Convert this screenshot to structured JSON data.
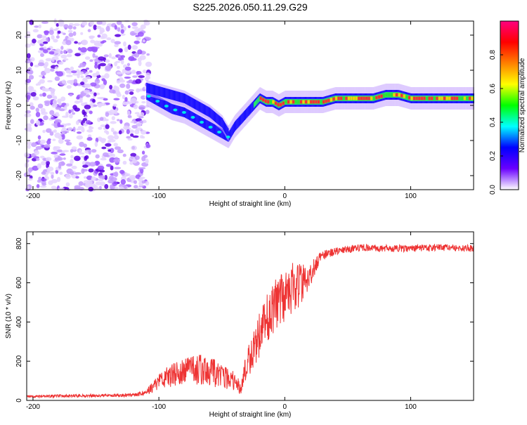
{
  "title": "S225.2026.050.11.29.G29",
  "chart_data": [
    {
      "type": "heatmap",
      "xlabel": "Height of straight line (km)",
      "ylabel": "Frequency (Hz)",
      "xlim": [
        -205,
        150
      ],
      "ylim": [
        -24,
        24
      ],
      "xticks": [
        -200,
        -100,
        0,
        100
      ],
      "yticks": [
        -20,
        -10,
        0,
        10,
        20
      ],
      "colorbar": {
        "label": "Normalized spectral amplitude",
        "range": [
          0,
          1
        ],
        "ticks": [
          "0.0",
          "0.2",
          "0.4",
          "0.6",
          "0.8"
        ],
        "tick_values": [
          0,
          0.2,
          0.4,
          0.6,
          0.8
        ],
        "colors": [
          "#ffffff",
          "#6a00ff",
          "#0000ff",
          "#00ffff",
          "#00ff00",
          "#ffff00",
          "#ff8000",
          "#ff0000",
          "#ff0080"
        ]
      },
      "ridge": {
        "x": [
          -110,
          -100,
          -90,
          -80,
          -70,
          -60,
          -50,
          -45,
          -40,
          -35,
          -30,
          -25,
          -20,
          -15,
          -10,
          -5,
          0,
          5,
          10,
          20,
          30,
          40,
          50,
          60,
          70,
          80,
          90,
          100,
          110,
          120,
          130,
          150
        ],
        "y": [
          3,
          1,
          -1,
          -2,
          -4,
          -6,
          -8,
          -9,
          -6,
          -4,
          -2,
          0,
          2,
          1,
          1,
          0,
          1,
          1,
          1,
          1,
          1,
          2,
          2,
          2,
          2,
          3,
          3,
          2,
          2,
          2,
          2,
          2
        ]
      },
      "ridge2": {
        "x": [
          -110,
          -100,
          -90,
          -80,
          -70,
          -60,
          -50,
          -45
        ],
        "y": [
          5,
          4,
          3,
          2,
          0,
          -2,
          -5,
          -8
        ]
      }
    },
    {
      "type": "line",
      "xlabel": "Height of straight line (km)",
      "ylabel": "SNR (10 * v/v)",
      "xlim": [
        -205,
        150
      ],
      "ylim": [
        0,
        860
      ],
      "xticks": [
        -200,
        -100,
        0,
        100
      ],
      "yticks": [
        0,
        200,
        400,
        600,
        800
      ],
      "color": "#ee3333",
      "series": [
        {
          "name": "SNR",
          "x": [
            -205,
            -180,
            -160,
            -140,
            -120,
            -110,
            -105,
            -100,
            -90,
            -80,
            -70,
            -60,
            -50,
            -40,
            -35,
            -30,
            -25,
            -20,
            -15,
            -10,
            -5,
            0,
            5,
            10,
            15,
            20,
            25,
            30,
            40,
            50,
            60,
            80,
            100,
            120,
            150
          ],
          "y": [
            20,
            22,
            24,
            25,
            28,
            40,
            70,
            100,
            130,
            140,
            160,
            150,
            130,
            100,
            60,
            200,
            270,
            330,
            400,
            460,
            500,
            540,
            570,
            590,
            600,
            640,
            700,
            740,
            760,
            770,
            780,
            775,
            775,
            780,
            775
          ],
          "noise": [
            6,
            8,
            8,
            8,
            10,
            15,
            30,
            40,
            60,
            70,
            80,
            75,
            70,
            50,
            30,
            90,
            110,
            120,
            130,
            140,
            140,
            140,
            130,
            120,
            100,
            70,
            40,
            25,
            18,
            18,
            18,
            18,
            18,
            18,
            18
          ]
        }
      ]
    }
  ]
}
